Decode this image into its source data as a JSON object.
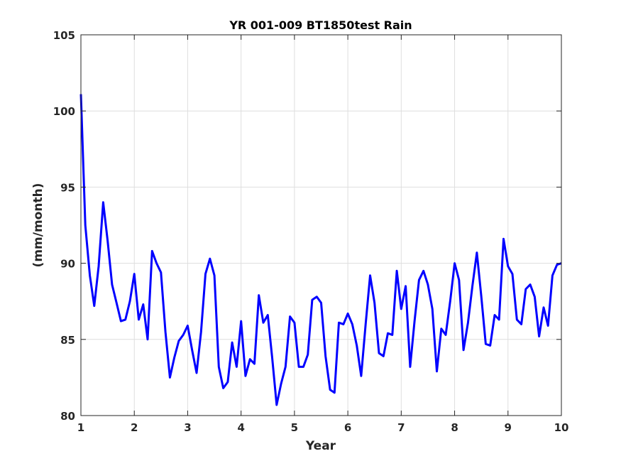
{
  "chart_data": {
    "type": "line",
    "title": "YR 001-009 BT1850test Rain",
    "xlabel": "Year",
    "ylabel": "(mm/month)",
    "xlim": [
      1,
      10
    ],
    "ylim": [
      80,
      105
    ],
    "xticks": [
      1,
      2,
      3,
      4,
      5,
      6,
      7,
      8,
      9,
      10
    ],
    "yticks": [
      80,
      85,
      90,
      95,
      100,
      105
    ],
    "grid": true,
    "color": "#0000ff",
    "series": [
      {
        "x": [
          1.0,
          1.083,
          1.167,
          1.25,
          1.333,
          1.417,
          1.5,
          1.583,
          1.667,
          1.75,
          1.833,
          1.917,
          2.0,
          2.083,
          2.167,
          2.25,
          2.333,
          2.417,
          2.5,
          2.583,
          2.667,
          2.75,
          2.833,
          2.917,
          3.0,
          3.083,
          3.167,
          3.25,
          3.333,
          3.417,
          3.5,
          3.583,
          3.667,
          3.75,
          3.833,
          3.917,
          4.0,
          4.083,
          4.167,
          4.25,
          4.333,
          4.417,
          4.5,
          4.583,
          4.667,
          4.75,
          4.833,
          4.917,
          5.0,
          5.083,
          5.167,
          5.25,
          5.333,
          5.417,
          5.5,
          5.583,
          5.667,
          5.75,
          5.833,
          5.917,
          6.0,
          6.083,
          6.167,
          6.25,
          6.333,
          6.417,
          6.5,
          6.583,
          6.667,
          6.75,
          6.833,
          6.917,
          7.0,
          7.083,
          7.167,
          7.25,
          7.333,
          7.417,
          7.5,
          7.583,
          7.667,
          7.75,
          7.833,
          7.917,
          8.0,
          8.083,
          8.167,
          8.25,
          8.333,
          8.417,
          8.5,
          8.583,
          8.667,
          8.75,
          8.833,
          8.917,
          9.0,
          9.083,
          9.167,
          9.25,
          9.333,
          9.417,
          9.5,
          9.583,
          9.667,
          9.75,
          9.833,
          9.917,
          10.0
        ],
        "y": [
          101.1,
          92.5,
          89.2,
          87.2,
          89.8,
          94.0,
          91.5,
          88.6,
          87.4,
          86.2,
          86.3,
          87.5,
          89.3,
          86.3,
          87.3,
          85.0,
          90.8,
          90.0,
          89.4,
          85.5,
          82.5,
          83.8,
          84.9,
          85.3,
          85.9,
          84.3,
          82.8,
          85.5,
          89.3,
          90.3,
          89.2,
          83.2,
          81.8,
          82.2,
          84.8,
          83.2,
          86.2,
          82.6,
          83.7,
          83.4,
          87.9,
          86.1,
          86.6,
          83.8,
          80.7,
          82.1,
          83.2,
          86.5,
          86.1,
          83.2,
          83.2,
          84.0,
          87.6,
          87.8,
          87.4,
          83.9,
          81.7,
          81.5,
          86.1,
          86.0,
          86.7,
          86.0,
          84.6,
          82.6,
          86.0,
          89.2,
          87.4,
          84.1,
          83.9,
          85.4,
          85.3,
          89.5,
          87.0,
          88.5,
          83.2,
          86.2,
          88.9,
          89.5,
          88.6,
          87.0,
          82.9,
          85.7,
          85.3,
          87.5,
          90.0,
          88.9,
          84.3,
          86.1,
          88.5,
          90.7,
          87.8,
          84.7,
          84.6,
          86.6,
          86.3,
          91.6,
          89.8,
          89.3,
          86.3,
          86.0,
          88.3,
          88.6,
          87.8,
          85.2,
          87.1,
          85.9,
          89.2,
          89.9,
          90.0
        ]
      }
    ]
  }
}
